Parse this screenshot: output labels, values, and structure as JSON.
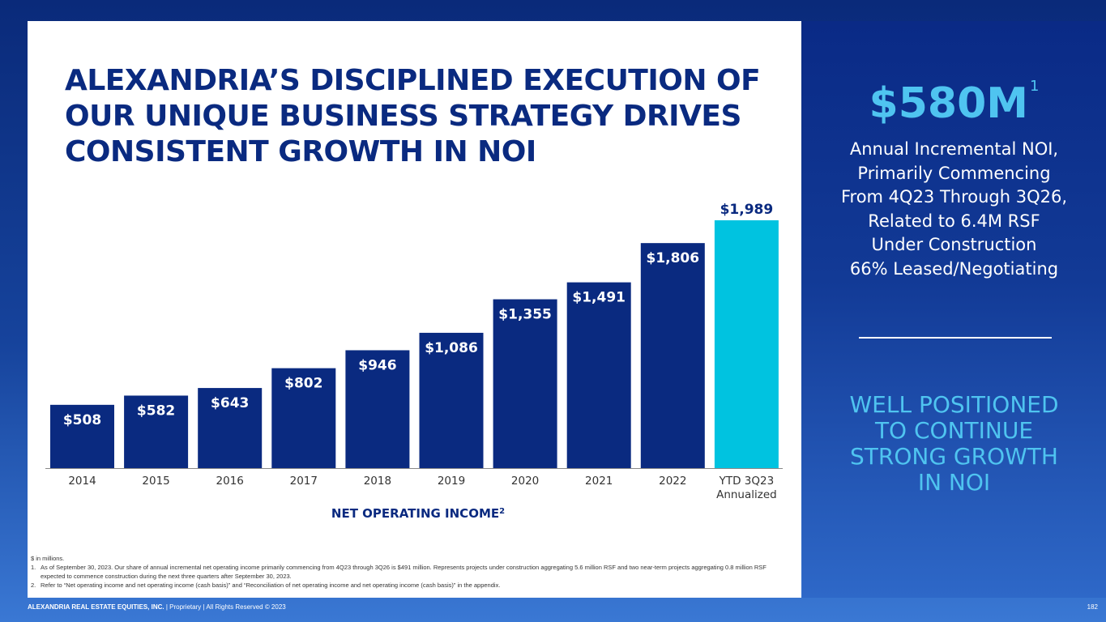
{
  "title_lines": [
    "ALEXANDRIA’S DISCIPLINED EXECUTION OF",
    "OUR UNIQUE BUSINESS STRATEGY DRIVES",
    "CONSISTENT GROWTH IN NOI"
  ],
  "chart_data": {
    "type": "bar",
    "title": "NET OPERATING INCOME",
    "title_superscript": "2",
    "categories": [
      "2014",
      "2015",
      "2016",
      "2017",
      "2018",
      "2019",
      "2020",
      "2021",
      "2022",
      "YTD 3Q23\nAnnualized"
    ],
    "values": [
      508,
      582,
      643,
      802,
      946,
      1086,
      1355,
      1491,
      1806,
      1989
    ],
    "value_labels": [
      "$508",
      "$582",
      "$643",
      "$802",
      "$946",
      "$1,086",
      "$1,355",
      "$1,491",
      "$1,806",
      "$1,989"
    ],
    "highlight_index": 9,
    "ylim": [
      0,
      1989
    ],
    "grid": false,
    "colors": {
      "bar": "#0a2a80",
      "highlight": "#00c3e0",
      "label_inside": "#ffffff",
      "label_above": "#0a2a80"
    }
  },
  "footnotes": {
    "units": "$ in millions.",
    "items": [
      {
        "num": "1.",
        "text": "As of September 30, 2023. Our share of annual incremental net operating income primarily commencing from 4Q23 through 3Q26 is $491 million. Represents projects under construction aggregating 5.6 million RSF and two near-term projects aggregating 0.8 million RSF expected to commence construction during the next three quarters after September 30, 2023."
      },
      {
        "num": "2.",
        "text": "Refer to “Net operating income and net operating income (cash basis)” and “Reconciliation of net operating income and net operating income (cash basis)” in the appendix."
      }
    ]
  },
  "footer": {
    "company": "ALEXANDRIA REAL ESTATE EQUITIES, INC.",
    "rest": " | Proprietary | All Rights Reserved © 2023",
    "page": "182"
  },
  "side": {
    "big_value": "$580M",
    "big_sup": "1",
    "desc_lines": [
      "Annual Incremental NOI,",
      "Primarily Commencing",
      "From 4Q23 Through 3Q26,",
      "Related to 6.4M RSF",
      "Under Construction",
      "66% Leased/Negotiating"
    ],
    "callout_lines": [
      "WELL POSITIONED",
      "TO CONTINUE",
      "STRONG GROWTH",
      "IN NOI"
    ]
  }
}
